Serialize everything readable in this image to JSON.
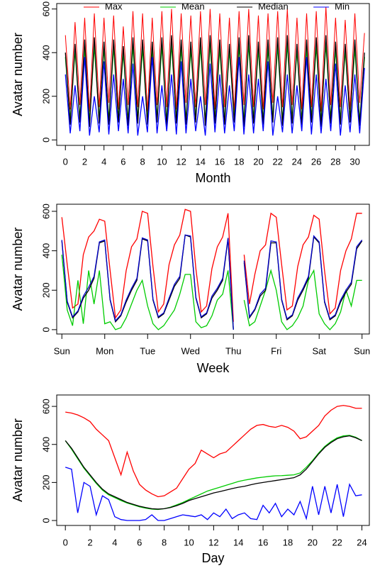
{
  "chart_data": [
    {
      "type": "line",
      "xlabel": "Month",
      "ylabel": "Avatar number",
      "legend": "top",
      "x": [
        0,
        0.5,
        1,
        1.5,
        2,
        2.5,
        3,
        3.5,
        4,
        4.5,
        5,
        5.5,
        6,
        6.5,
        7,
        7.5,
        8,
        8.5,
        9,
        9.5,
        10,
        10.5,
        11,
        11.5,
        12,
        12.5,
        13,
        13.5,
        14,
        14.5,
        15,
        15.5,
        16,
        16.5,
        17,
        17.5,
        18,
        18.5,
        19,
        19.5,
        20,
        20.5,
        21,
        21.5,
        22,
        22.5,
        23,
        23.5,
        24,
        24.5,
        25,
        25.5,
        26,
        26.5,
        27,
        27.5,
        28,
        28.5,
        29,
        29.5,
        30,
        30.5,
        31
      ],
      "series": [
        {
          "name": "Max",
          "color": "#ff0000",
          "values": [
            480,
            140,
            540,
            160,
            560,
            130,
            580,
            150,
            560,
            170,
            570,
            140,
            520,
            160,
            590,
            150,
            580,
            130,
            560,
            160,
            590,
            150,
            600,
            140,
            580,
            170,
            570,
            150,
            590,
            160,
            600,
            140,
            580,
            150,
            560,
            130,
            590,
            160,
            600,
            150,
            570,
            140,
            580,
            170,
            590,
            150,
            600,
            160,
            560,
            140,
            580,
            150,
            590,
            130,
            610,
            160,
            560,
            150,
            550,
            140,
            580,
            170,
            490
          ]
        },
        {
          "name": "Mean",
          "color": "#00cc00",
          "values": [
            380,
            90,
            410,
            100,
            420,
            85,
            430,
            95,
            420,
            90,
            425,
            100,
            400,
            85,
            430,
            95,
            420,
            90,
            415,
            100,
            430,
            85,
            440,
            95,
            420,
            90,
            415,
            100,
            430,
            85,
            440,
            95,
            420,
            90,
            410,
            100,
            430,
            85,
            440,
            95,
            415,
            90,
            420,
            100,
            430,
            85,
            440,
            95,
            410,
            90,
            420,
            100,
            430,
            85,
            440,
            95,
            415,
            90,
            410,
            100,
            420,
            85,
            380
          ]
        },
        {
          "name": "Median",
          "color": "#000000",
          "values": [
            400,
            70,
            440,
            80,
            460,
            60,
            470,
            75,
            450,
            70,
            460,
            80,
            430,
            65,
            470,
            75,
            460,
            70,
            450,
            80,
            470,
            60,
            480,
            75,
            460,
            70,
            450,
            80,
            470,
            65,
            480,
            75,
            460,
            70,
            440,
            80,
            470,
            60,
            480,
            75,
            450,
            70,
            460,
            80,
            470,
            65,
            480,
            75,
            440,
            70,
            460,
            80,
            470,
            60,
            480,
            75,
            450,
            70,
            440,
            80,
            460,
            65,
            400
          ]
        },
        {
          "name": "Min",
          "color": "#0000ff",
          "values": [
            300,
            30,
            250,
            40,
            380,
            20,
            200,
            35,
            360,
            25,
            300,
            40,
            280,
            30,
            350,
            20,
            200,
            35,
            380,
            30,
            250,
            40,
            300,
            25,
            360,
            30,
            280,
            40,
            200,
            20,
            350,
            35,
            300,
            30,
            250,
            40,
            380,
            25,
            300,
            30,
            280,
            40,
            360,
            20,
            200,
            35,
            300,
            30,
            250,
            40,
            380,
            25,
            300,
            30,
            280,
            40,
            350,
            20,
            250,
            35,
            300,
            30,
            330
          ]
        }
      ],
      "xlim": [
        -0.9,
        31.5
      ],
      "xticks": [
        0,
        2,
        4,
        6,
        8,
        10,
        12,
        14,
        16,
        18,
        20,
        22,
        24,
        26,
        28,
        30
      ],
      "ylim": [
        -25,
        625
      ],
      "yticks": [
        0,
        200,
        400,
        600
      ]
    },
    {
      "type": "line",
      "xlabel": "Week",
      "ylabel": "Avatar number",
      "x": [
        0,
        0.125,
        0.25,
        0.375,
        0.5,
        0.625,
        0.75,
        0.875,
        1,
        1.125,
        1.25,
        1.375,
        1.5,
        1.625,
        1.75,
        1.875,
        2,
        2.125,
        2.25,
        2.375,
        2.5,
        2.625,
        2.75,
        2.875,
        3,
        3.125,
        3.25,
        3.375,
        3.5,
        3.625,
        3.75,
        3.875,
        4,
        4.125,
        4.25,
        4.375,
        4.5,
        4.625,
        4.75,
        4.875,
        5,
        5.125,
        5.25,
        5.375,
        5.5,
        5.625,
        5.75,
        5.875,
        6,
        6.125,
        6.25,
        6.375,
        6.5,
        6.625,
        6.75,
        6.875,
        7
      ],
      "series": [
        {
          "color": "#ff0000",
          "values": [
            570,
            330,
            110,
            130,
            380,
            470,
            500,
            560,
            550,
            300,
            60,
            100,
            300,
            420,
            460,
            600,
            590,
            320,
            90,
            130,
            330,
            430,
            480,
            610,
            600,
            310,
            90,
            120,
            310,
            420,
            470,
            590,
            40,
            null,
            380,
            130,
            280,
            400,
            430,
            590,
            570,
            330,
            100,
            120,
            320,
            430,
            470,
            580,
            560,
            300,
            80,
            110,
            300,
            400,
            460,
            590,
            590
          ]
        },
        {
          "color": "#00cc00",
          "values": [
            380,
            100,
            20,
            250,
            30,
            300,
            130,
            300,
            30,
            40,
            0,
            10,
            60,
            130,
            200,
            250,
            120,
            30,
            0,
            20,
            60,
            100,
            180,
            280,
            280,
            40,
            10,
            20,
            70,
            150,
            180,
            300,
            0,
            null,
            150,
            20,
            40,
            120,
            200,
            300,
            200,
            40,
            0,
            20,
            60,
            120,
            250,
            300,
            80,
            30,
            0,
            30,
            90,
            200,
            120,
            250,
            250
          ]
        },
        {
          "color": "#000000",
          "values": [
            450,
            140,
            60,
            90,
            160,
            200,
            260,
            440,
            450,
            150,
            40,
            70,
            140,
            200,
            250,
            460,
            450,
            150,
            60,
            80,
            150,
            220,
            260,
            480,
            470,
            160,
            60,
            80,
            160,
            200,
            250,
            460,
            0,
            null,
            340,
            60,
            100,
            170,
            200,
            440,
            440,
            150,
            50,
            70,
            150,
            200,
            260,
            470,
            440,
            140,
            50,
            70,
            140,
            190,
            230,
            410,
            450
          ]
        },
        {
          "color": "#0000cc",
          "values": [
            455,
            145,
            65,
            95,
            170,
            215,
            270,
            445,
            455,
            155,
            45,
            75,
            150,
            210,
            260,
            465,
            455,
            155,
            65,
            85,
            160,
            230,
            270,
            480,
            475,
            165,
            65,
            85,
            170,
            210,
            260,
            465,
            0,
            null,
            350,
            65,
            105,
            180,
            210,
            450,
            445,
            155,
            55,
            75,
            160,
            210,
            270,
            475,
            445,
            145,
            55,
            75,
            150,
            200,
            240,
            420,
            455
          ]
        }
      ],
      "xlim": [
        -0.12,
        7.17
      ],
      "xticks": [
        {
          "value": 0,
          "label": "Sun"
        },
        {
          "value": 1,
          "label": "Mon"
        },
        {
          "value": 2,
          "label": "Tue"
        },
        {
          "value": 3,
          "label": "Wed"
        },
        {
          "value": 4,
          "label": "Thu"
        },
        {
          "value": 5,
          "label": "Fri"
        },
        {
          "value": 6,
          "label": "Sat"
        },
        {
          "value": 7,
          "label": "Sun"
        }
      ],
      "ylim": [
        -22,
        636
      ],
      "yticks": [
        0,
        200,
        400,
        600
      ]
    },
    {
      "type": "line",
      "xlabel": "Day",
      "ylabel": "Avatar number",
      "x": [
        0,
        0.5,
        1,
        1.5,
        2,
        2.5,
        3,
        3.5,
        4,
        4.5,
        5,
        5.5,
        6,
        6.5,
        7,
        7.5,
        8,
        8.5,
        9,
        9.5,
        10,
        10.5,
        11,
        11.5,
        12,
        12.5,
        13,
        13.5,
        14,
        14.5,
        15,
        15.5,
        16,
        16.5,
        17,
        17.5,
        18,
        18.5,
        19,
        19.5,
        20,
        20.5,
        21,
        21.5,
        22,
        22.5,
        23,
        23.5,
        24
      ],
      "series": [
        {
          "color": "#ff0000",
          "values": [
            570,
            565,
            555,
            540,
            520,
            480,
            450,
            420,
            330,
            240,
            360,
            260,
            190,
            160,
            140,
            125,
            130,
            150,
            170,
            220,
            270,
            300,
            370,
            350,
            330,
            350,
            360,
            390,
            420,
            450,
            480,
            500,
            505,
            495,
            490,
            500,
            490,
            470,
            430,
            440,
            470,
            500,
            550,
            580,
            600,
            605,
            600,
            590,
            590
          ]
        },
        {
          "color": "#00cc00",
          "values": [
            420,
            375,
            325,
            275,
            235,
            195,
            160,
            135,
            120,
            105,
            92,
            82,
            72,
            65,
            60,
            58,
            62,
            70,
            82,
            95,
            110,
            125,
            140,
            155,
            165,
            175,
            185,
            195,
            205,
            212,
            218,
            224,
            228,
            232,
            235,
            236,
            238,
            240,
            250,
            280,
            315,
            355,
            390,
            415,
            435,
            445,
            448,
            438,
            420
          ]
        },
        {
          "color": "#000000",
          "values": [
            420,
            380,
            330,
            280,
            240,
            200,
            165,
            140,
            125,
            110,
            95,
            85,
            75,
            68,
            62,
            60,
            62,
            68,
            78,
            90,
            105,
            115,
            125,
            135,
            145,
            152,
            160,
            168,
            175,
            180,
            188,
            195,
            200,
            205,
            210,
            215,
            220,
            225,
            240,
            270,
            310,
            350,
            385,
            410,
            430,
            440,
            445,
            435,
            420
          ]
        },
        {
          "color": "#0000ff",
          "values": [
            280,
            270,
            40,
            200,
            180,
            30,
            130,
            110,
            20,
            5,
            0,
            0,
            0,
            5,
            30,
            0,
            0,
            10,
            20,
            30,
            25,
            20,
            30,
            5,
            40,
            20,
            60,
            10,
            30,
            40,
            10,
            5,
            80,
            40,
            90,
            20,
            60,
            30,
            100,
            10,
            180,
            30,
            180,
            40,
            190,
            20,
            190,
            130,
            135
          ]
        }
      ],
      "xlim": [
        -0.7,
        24.6
      ],
      "xticks": [
        0,
        2,
        4,
        6,
        8,
        10,
        12,
        14,
        16,
        18,
        20,
        22,
        24
      ],
      "ylim": [
        -26,
        660
      ],
      "yticks": [
        0,
        200,
        400,
        600
      ]
    }
  ]
}
